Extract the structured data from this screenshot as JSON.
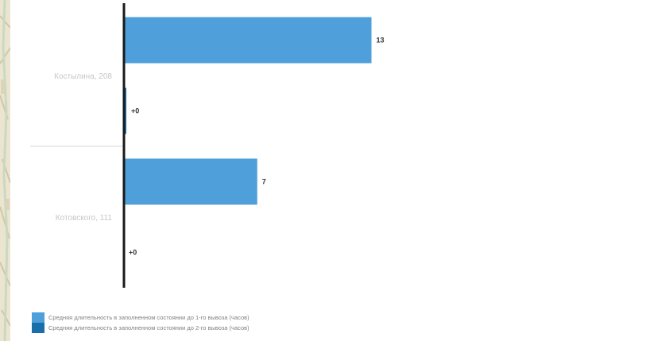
{
  "chart_data": {
    "type": "bar",
    "orientation": "horizontal",
    "categories": [
      "Костылина, 208",
      "Котовского, 111"
    ],
    "series": [
      {
        "name": "Средняя длительность в заполненном состоянии до 1-го вывоза (часов)",
        "values": [
          13,
          7
        ],
        "labels": [
          "13",
          "7"
        ],
        "color": "#4f9fda"
      },
      {
        "name": "Средняя длительность в заполненном состоянии до 2-го вывоза (часов)",
        "values": [
          0.1,
          0
        ],
        "labels": [
          "+0",
          "+0"
        ],
        "color": "#1a6fa8"
      }
    ],
    "xlim": [
      0,
      27
    ],
    "grid": false,
    "legend_position": "bottom-left",
    "title": "",
    "xlabel": "",
    "ylabel": ""
  },
  "colors": {
    "axis": "#1a1a1a",
    "separator": "#d9d9d9",
    "category_text": "#c7c7c7",
    "value_text": "#333333",
    "legend_text": "#7f7f7f",
    "background": "#ffffff"
  }
}
